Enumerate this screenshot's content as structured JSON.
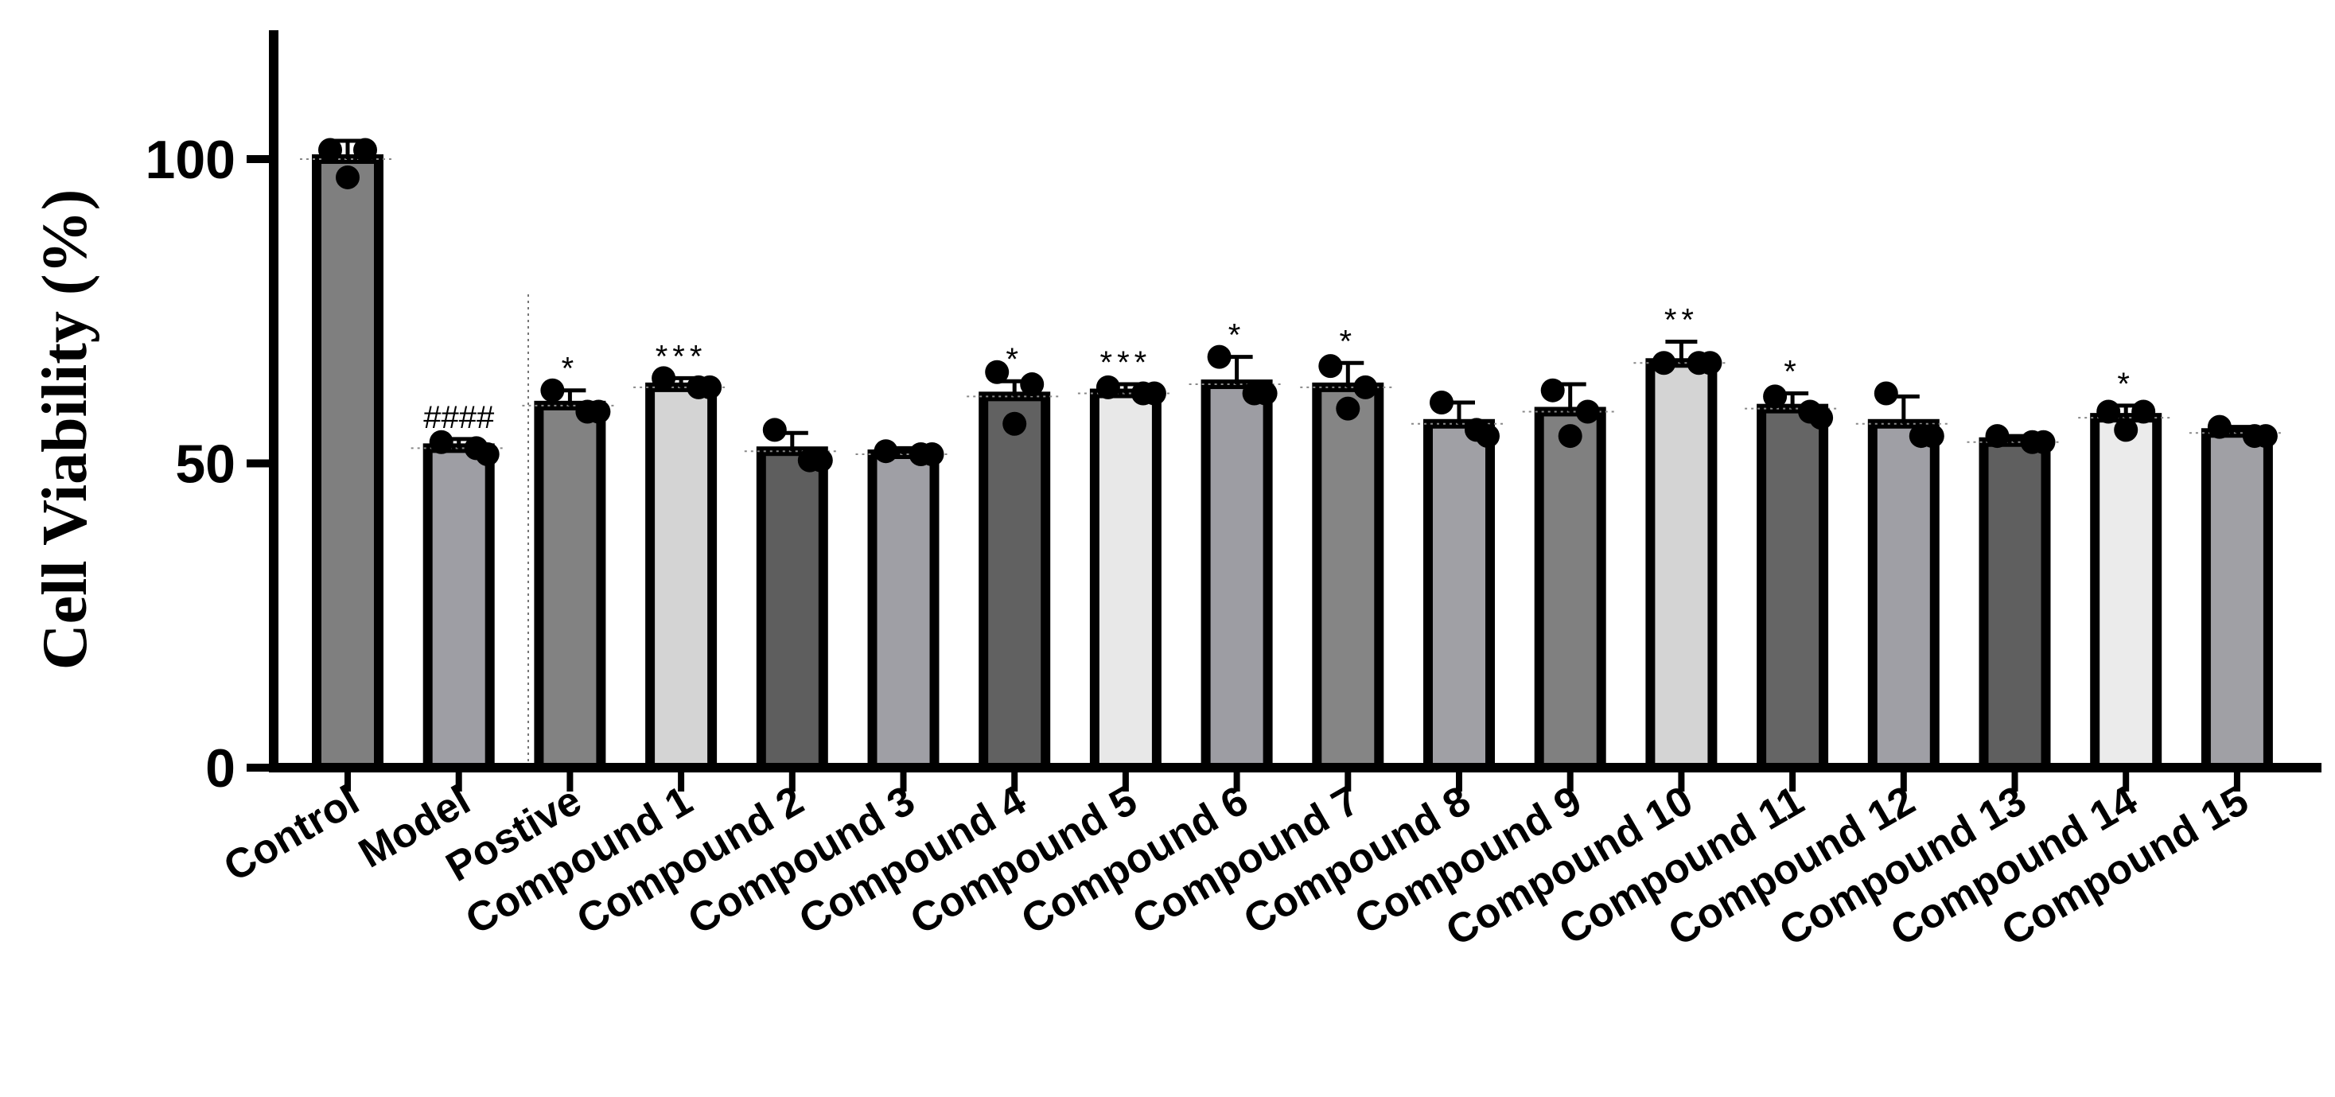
{
  "chart_data": {
    "type": "bar",
    "ylabel": "Cell Viability (%)",
    "ylim": [
      0,
      120
    ],
    "yticks": [
      0,
      50,
      100
    ],
    "yticklabels": [
      "0",
      "50",
      "100"
    ],
    "grid": false,
    "categories": [
      "Control",
      "Model",
      "Postive",
      "Compound 1",
      "Compound 2",
      "Compound 3",
      "Compound 4",
      "Compound 5",
      "Compound 6",
      "Compound 7",
      "Compound 8",
      "Compound 9",
      "Compound 10",
      "Compound 11",
      "Compound 12",
      "Compound 13",
      "Compound 14",
      "Compound 15"
    ],
    "values": [
      100,
      52.5,
      59.5,
      62.5,
      52,
      51.5,
      61,
      61.5,
      63,
      62.5,
      56.5,
      58.5,
      66.5,
      59,
      56.5,
      53.5,
      57.5,
      55
    ],
    "error_upper": [
      103,
      54,
      62,
      64,
      55,
      52.5,
      63.5,
      63,
      67.5,
      66.5,
      60,
      63,
      70,
      61.5,
      61,
      54.5,
      59.5,
      56
    ],
    "points": [
      [
        101.5,
        101.5,
        97
      ],
      [
        53.5,
        52.5,
        51.5
      ],
      [
        62,
        58.5,
        58.5
      ],
      [
        64,
        62.5,
        62.5
      ],
      [
        55.5,
        50.5,
        50.5
      ],
      [
        52,
        51.5,
        51.5
      ],
      [
        65,
        63,
        56.5
      ],
      [
        62.5,
        61.5,
        61.5
      ],
      [
        67.5,
        61.5,
        61.5
      ],
      [
        66,
        62.5,
        59
      ],
      [
        60,
        55.5,
        54.5
      ],
      [
        62,
        58.5,
        54.5
      ],
      [
        66.5,
        66.5,
        66.5
      ],
      [
        61,
        58.5,
        57.5
      ],
      [
        61.5,
        54.5,
        54.5
      ],
      [
        54.5,
        53.5,
        53.5
      ],
      [
        58.5,
        58.5,
        55.5
      ],
      [
        56,
        54.5,
        54.5
      ]
    ],
    "significance": [
      "",
      "####",
      "*",
      "***",
      "",
      "",
      "*",
      "***",
      "*",
      "*",
      "",
      "",
      "**",
      "*",
      "",
      "",
      "*",
      ""
    ],
    "colors": [
      "#7f7f7f",
      "#9e9ea4",
      "#828282",
      "#d4d4d4",
      "#5e5e5e",
      "#9f9fa5",
      "#616161",
      "#e8e8e8",
      "#9d9da3",
      "#858585",
      "#a0a0a5",
      "#808080",
      "#d4d4d4",
      "#656565",
      "#9f9fa5",
      "#5f5f5f",
      "#ebebeb",
      "#a0a0a5"
    ]
  }
}
